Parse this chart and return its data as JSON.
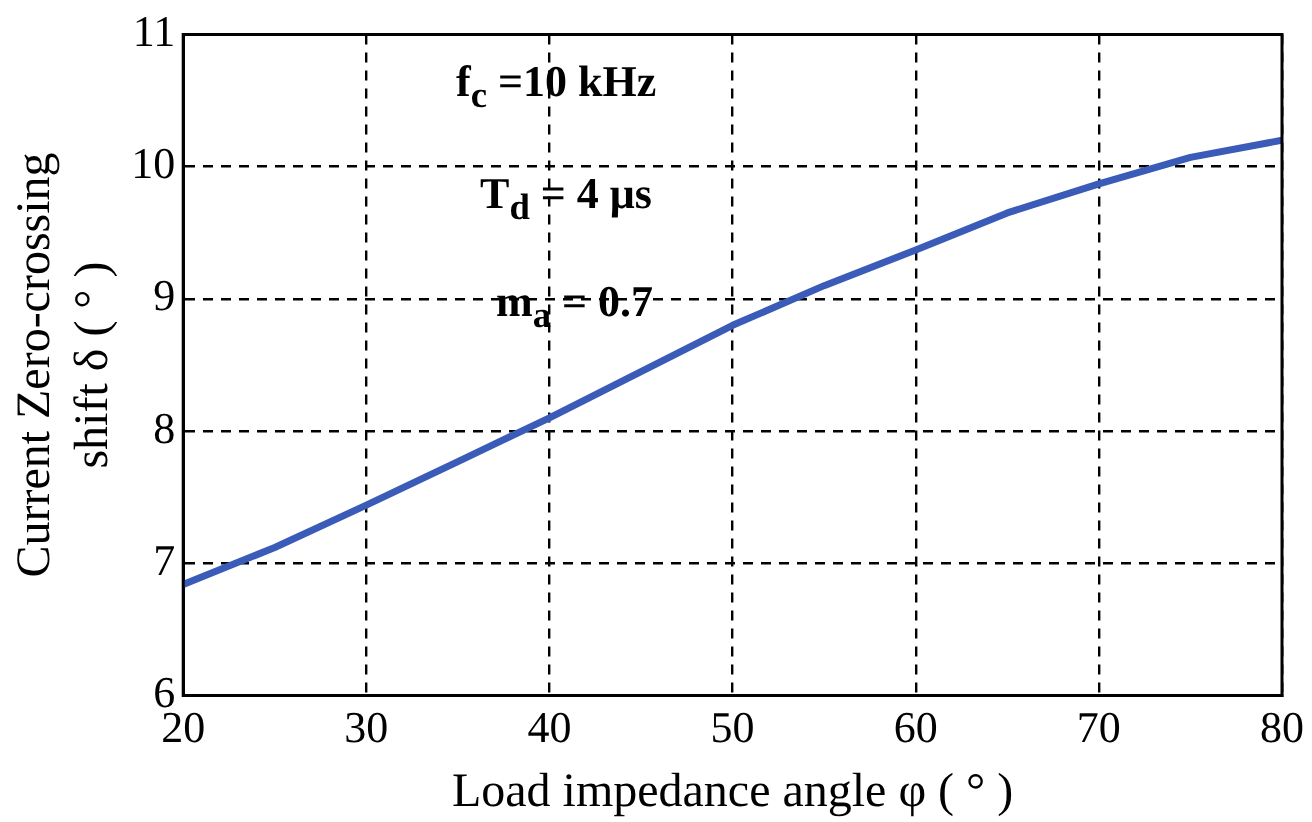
{
  "chart_data": {
    "type": "line",
    "xlabel": "Load impedance angle φ ( ° )",
    "ylabel": "Current Zero-crossing\nshift δ ( ° )",
    "annotations": [
      "f$_{c}$ =10 kHz",
      "T$_{d}$ = 4 μs",
      "m$_{a}$ = 0.7"
    ],
    "x": [
      20,
      25,
      30,
      35,
      40,
      45,
      50,
      55,
      60,
      65,
      70,
      75,
      80
    ],
    "series": [
      {
        "color": "#3a5bb8",
        "values": [
          6.84,
          7.12,
          7.44,
          7.77,
          8.1,
          8.45,
          8.8,
          9.1,
          9.37,
          9.65,
          9.87,
          10.07,
          10.2
        ]
      }
    ],
    "xlim": [
      20,
      80
    ],
    "xticks": [
      20,
      30,
      40,
      50,
      60,
      70,
      80
    ],
    "ylim": [
      6,
      11
    ],
    "yticks": [
      6,
      7,
      8,
      9,
      10,
      11
    ],
    "grid": true,
    "legend": false,
    "marker": "none",
    "line_style": "solid"
  }
}
